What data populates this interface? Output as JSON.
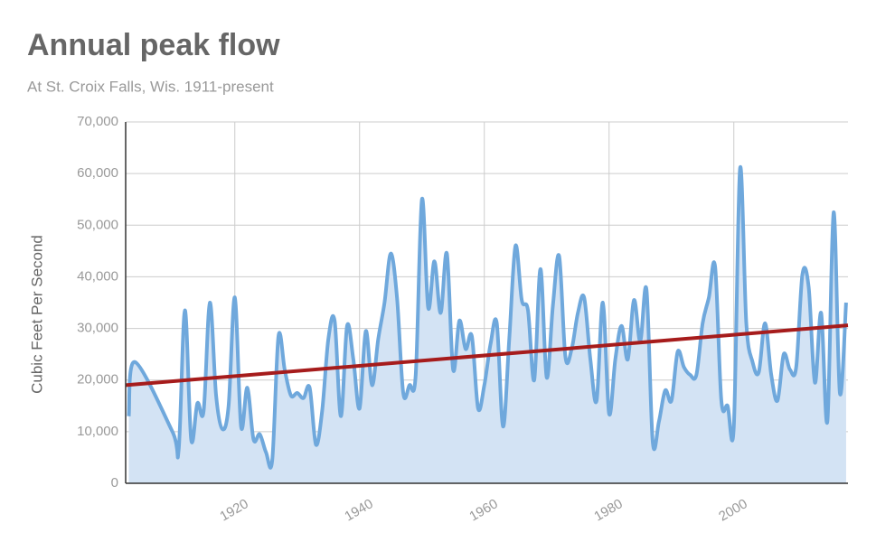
{
  "chart_data": {
    "type": "line",
    "title": "Annual peak flow",
    "subtitle": "At St. Croix Falls, Wis. 1911-present",
    "y_label": "Cubic Feet Per Second",
    "x": [
      1903,
      1904,
      1910,
      1911,
      1912,
      1913,
      1914,
      1915,
      1916,
      1917,
      1918,
      1919,
      1920,
      1921,
      1922,
      1923,
      1924,
      1925,
      1926,
      1927,
      1928,
      1929,
      1930,
      1931,
      1932,
      1933,
      1934,
      1935,
      1936,
      1937,
      1938,
      1939,
      1940,
      1941,
      1942,
      1943,
      1944,
      1945,
      1946,
      1947,
      1948,
      1949,
      1950,
      1951,
      1952,
      1953,
      1954,
      1955,
      1956,
      1957,
      1958,
      1959,
      1960,
      1961,
      1962,
      1963,
      1964,
      1965,
      1966,
      1967,
      1968,
      1969,
      1970,
      1971,
      1972,
      1973,
      1974,
      1975,
      1976,
      1977,
      1978,
      1979,
      1980,
      1981,
      1982,
      1983,
      1984,
      1985,
      1986,
      1987,
      1988,
      1989,
      1990,
      1991,
      1992,
      1993,
      1994,
      1995,
      1996,
      1997,
      1998,
      1999,
      2000,
      2001,
      2002,
      2003,
      2004,
      2005,
      2006,
      2007,
      2008,
      2009,
      2010,
      2011,
      2012,
      2013,
      2014,
      2015,
      2016,
      2017,
      2018
    ],
    "series": [
      {
        "color": "#6fa8dc",
        "fill": "#d3e3f4",
        "values": [
          13000,
          23500,
          10000,
          6500,
          33500,
          8500,
          15500,
          14000,
          35000,
          17000,
          10500,
          15000,
          36000,
          11000,
          18500,
          8500,
          9500,
          6000,
          4500,
          28500,
          22000,
          17000,
          17500,
          16500,
          18500,
          7500,
          14000,
          28000,
          31500,
          13000,
          30500,
          24000,
          14500,
          29500,
          19000,
          28000,
          35000,
          44500,
          36000,
          17500,
          19000,
          21000,
          55000,
          34000,
          43000,
          33000,
          44500,
          22000,
          31500,
          26000,
          28500,
          14500,
          19000,
          27000,
          31000,
          11000,
          28000,
          46000,
          35500,
          33500,
          20000,
          41500,
          20500,
          34500,
          44000,
          24500,
          26000,
          33000,
          36000,
          24000,
          16000,
          35000,
          13500,
          24000,
          30500,
          24000,
          35500,
          27500,
          37500,
          8000,
          12000,
          18000,
          16000,
          25500,
          22500,
          21000,
          21000,
          31000,
          36000,
          42000,
          16000,
          15000,
          11000,
          61000,
          31000,
          23500,
          21500,
          31000,
          21000,
          16000,
          25000,
          22000,
          22500,
          40500,
          38000,
          19500,
          33000,
          12000,
          52500,
          17500,
          35000
        ]
      }
    ],
    "trend": {
      "color": "#a61c1c",
      "x": [
        1902.5,
        2018.3
      ],
      "values": [
        19000,
        30600
      ]
    },
    "xlim": [
      1902.5,
      2018.3
    ],
    "ylim": [
      0,
      70000
    ],
    "xticks": [
      1920,
      1940,
      1960,
      1980,
      2000
    ],
    "yticks": [
      0,
      {
        "value": 10000,
        "label": "10,000"
      },
      {
        "value": 20000,
        "label": "20,000"
      },
      {
        "value": 30000,
        "label": "30,000"
      },
      {
        "value": 40000,
        "label": "40,000"
      },
      {
        "value": 50000,
        "label": "50,000"
      },
      {
        "value": 60000,
        "label": "60,000"
      },
      {
        "value": 70000,
        "label": "70,000"
      }
    ],
    "grid": true
  }
}
